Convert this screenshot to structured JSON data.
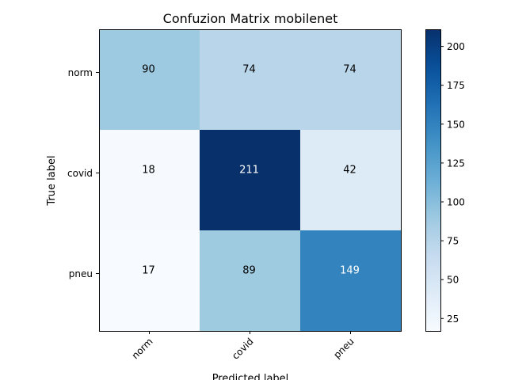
{
  "chart_data": {
    "type": "heatmap",
    "title": "Confuzion Matrix mobilenet",
    "xlabel": "Predicted label",
    "ylabel": "True label",
    "x_categories": [
      "norm",
      "covid",
      "pneu"
    ],
    "y_categories": [
      "norm",
      "covid",
      "pneu"
    ],
    "values": [
      [
        90,
        74,
        74
      ],
      [
        18,
        211,
        42
      ],
      [
        17,
        89,
        149
      ]
    ],
    "colormap": "Blues",
    "color_range": [
      17,
      211
    ],
    "colorbar_ticks": [
      25,
      50,
      75,
      100,
      125,
      150,
      175,
      200
    ],
    "grid": false
  }
}
